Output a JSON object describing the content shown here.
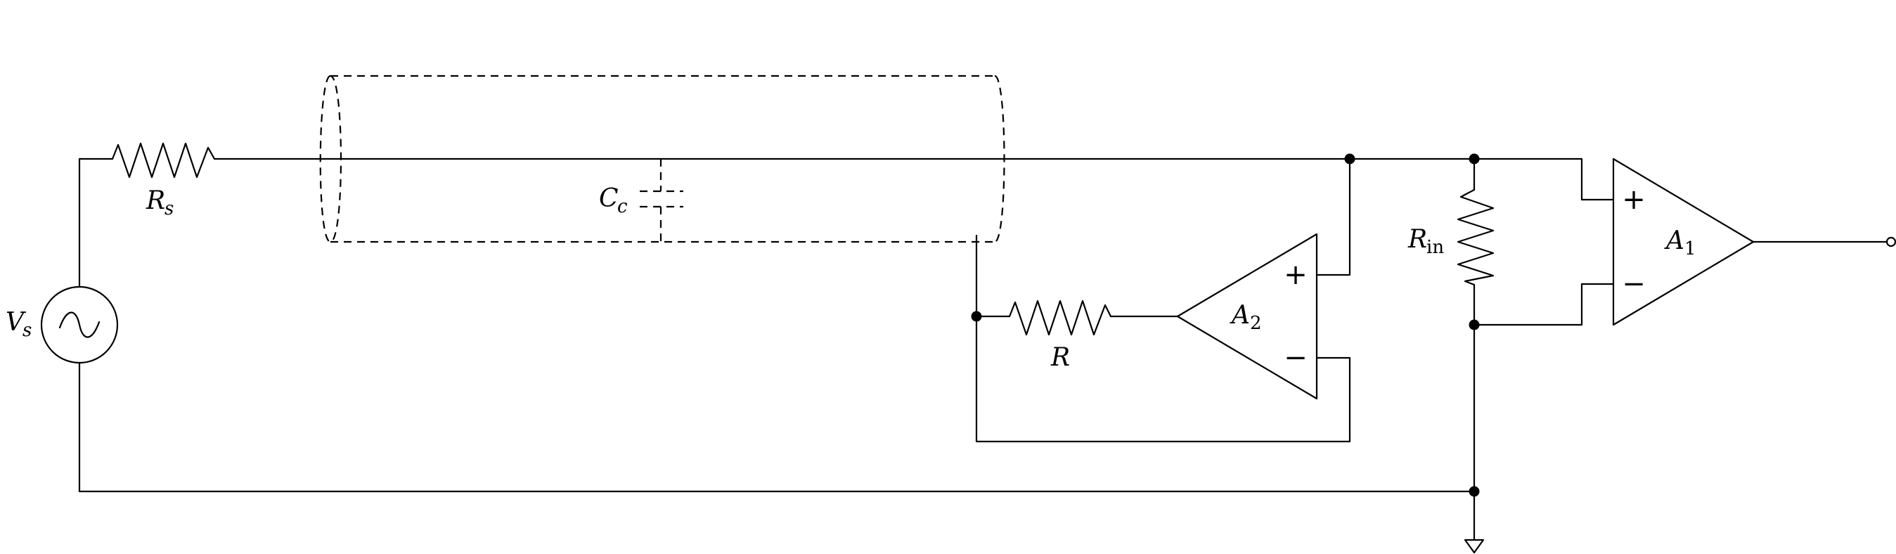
{
  "labels": {
    "vs": {
      "main": "V",
      "sub": "s"
    },
    "rs": {
      "main": "R",
      "sub": "s"
    },
    "cc": {
      "main": "C",
      "sub": "c"
    },
    "r": {
      "main": "R"
    },
    "a2": {
      "main": "A",
      "sub": "2"
    },
    "rin": {
      "main": "R",
      "sub": "in"
    },
    "a1": {
      "main": "A",
      "sub": "1"
    }
  },
  "opamp_signs": {
    "plus": "+",
    "minus": "−"
  }
}
